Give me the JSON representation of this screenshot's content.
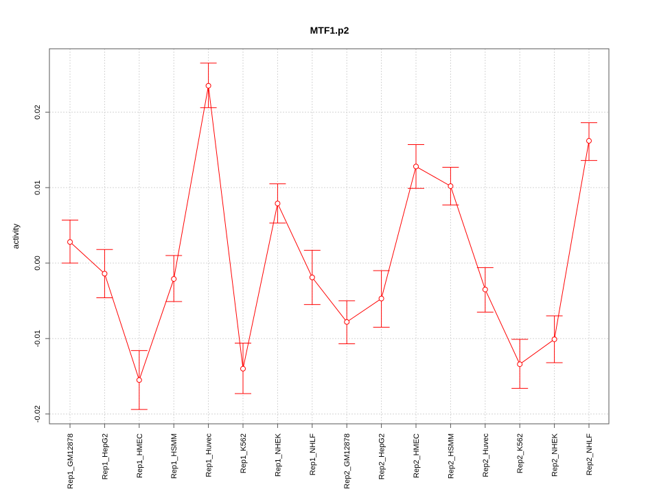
{
  "chart_data": {
    "type": "line",
    "title": "MTF1.p2",
    "xlabel": "",
    "ylabel": "activity",
    "ylim": [
      -0.0213,
      0.0284
    ],
    "grid": true,
    "y_ticks": [
      -0.02,
      -0.01,
      0.0,
      0.01,
      0.02
    ],
    "y_tick_labels": [
      "-0.02",
      "-0.01",
      "0.00",
      "0.01",
      "0.02"
    ],
    "categories": [
      "Rep1_GM12878",
      "Rep1_HepG2",
      "Rep1_HMEC",
      "Rep1_HSMM",
      "Rep1_Huvec",
      "Rep1_K562",
      "Rep1_NHEK",
      "Rep1_NHLF",
      "Rep2_GM12878",
      "Rep2_HepG2",
      "Rep2_HMEC",
      "Rep2_HSMM",
      "Rep2_Huvec",
      "Rep2_K562",
      "Rep2_NHEK",
      "Rep2_NHLF"
    ],
    "series": [
      {
        "name": "activity",
        "color": "#ff0000",
        "values": [
          0.0028,
          -0.0014,
          -0.0155,
          -0.0021,
          0.0235,
          -0.014,
          0.0079,
          -0.0019,
          -0.0078,
          -0.0047,
          0.0128,
          0.0102,
          -0.0035,
          -0.0134,
          -0.0101,
          0.0162
        ],
        "err_upper": [
          0.0057,
          0.0018,
          -0.0116,
          0.001,
          0.0265,
          -0.0106,
          0.0105,
          0.0017,
          -0.005,
          -0.001,
          0.0157,
          0.0127,
          -0.0006,
          -0.0101,
          -0.007,
          0.0186
        ],
        "err_lower": [
          0.0,
          -0.0046,
          -0.0194,
          -0.0051,
          0.0206,
          -0.0173,
          0.0053,
          -0.0055,
          -0.0107,
          -0.0085,
          0.0099,
          0.0077,
          -0.0065,
          -0.0166,
          -0.0132,
          0.0136
        ]
      }
    ]
  }
}
